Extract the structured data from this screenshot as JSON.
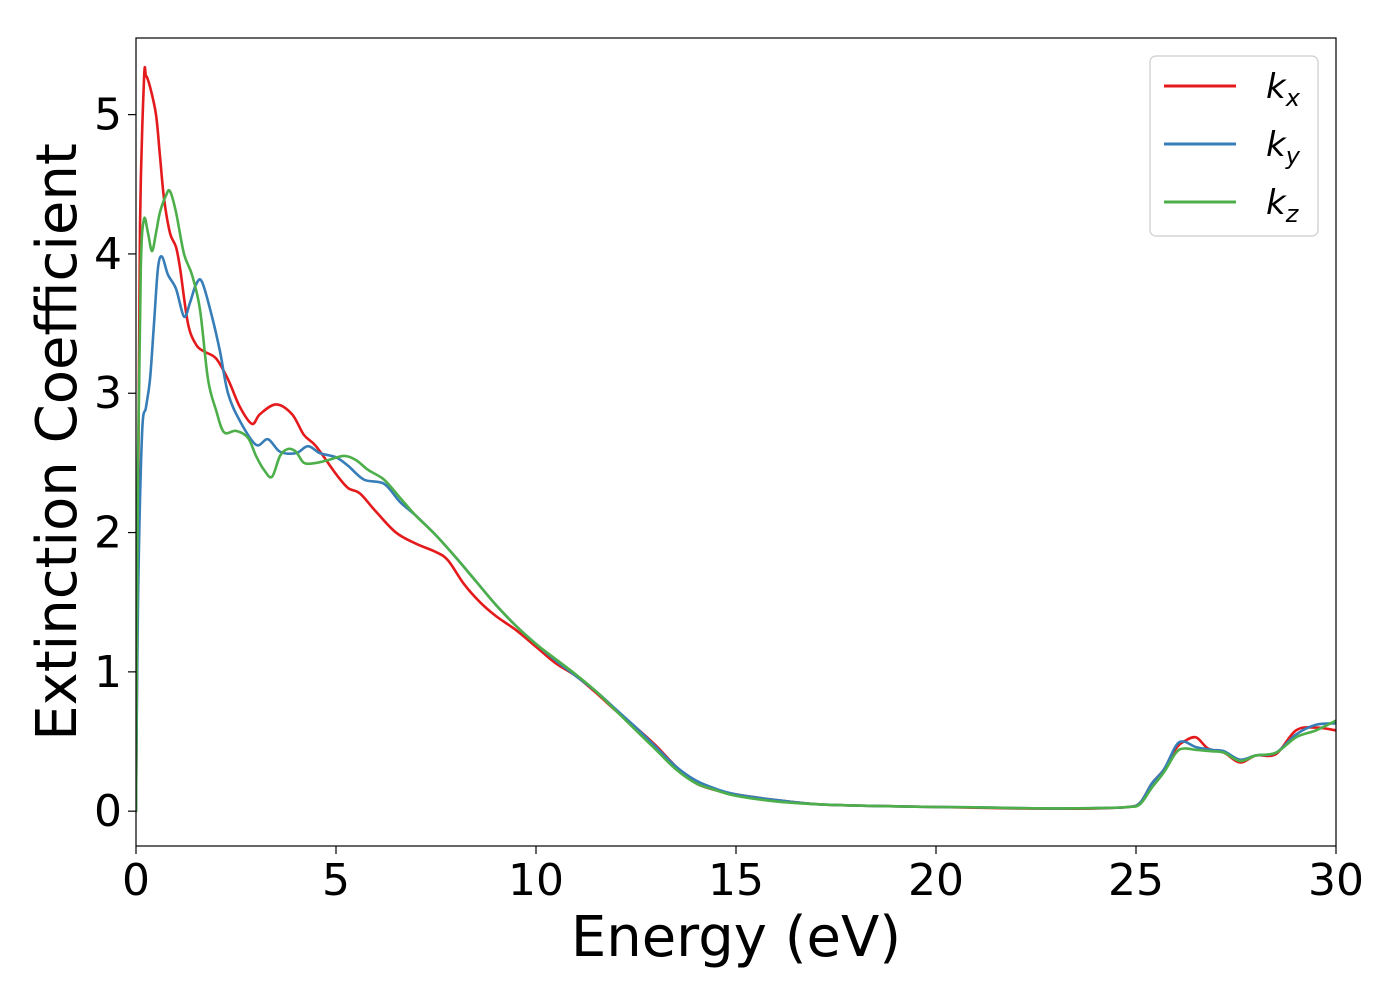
{
  "chart_data": {
    "type": "line",
    "title": "",
    "xlabel": "Energy (eV)",
    "ylabel": "Extinction Coefficient",
    "xlim": [
      0,
      30
    ],
    "ylim": [
      -0.25,
      5.55
    ],
    "xticks": [
      "0",
      "5",
      "10",
      "15",
      "20",
      "25",
      "30"
    ],
    "yticks": [
      "0",
      "1",
      "2",
      "3",
      "4",
      "5"
    ],
    "grid": false,
    "legend_position": "top-right",
    "series": [
      {
        "name": "k_x",
        "label_main": "k",
        "label_sub": "x",
        "color": "#e41a1c",
        "points": [
          [
            0,
            0
          ],
          [
            0.05,
            2.0
          ],
          [
            0.1,
            4.2
          ],
          [
            0.2,
            5.25
          ],
          [
            0.25,
            5.28
          ],
          [
            0.35,
            5.2
          ],
          [
            0.5,
            5.0
          ],
          [
            0.6,
            4.7
          ],
          [
            0.7,
            4.4
          ],
          [
            0.85,
            4.15
          ],
          [
            1.0,
            4.05
          ],
          [
            1.1,
            3.9
          ],
          [
            1.3,
            3.5
          ],
          [
            1.5,
            3.35
          ],
          [
            1.7,
            3.3
          ],
          [
            2.0,
            3.25
          ],
          [
            2.3,
            3.1
          ],
          [
            2.6,
            2.9
          ],
          [
            2.9,
            2.78
          ],
          [
            3.1,
            2.85
          ],
          [
            3.5,
            2.92
          ],
          [
            3.9,
            2.85
          ],
          [
            4.2,
            2.7
          ],
          [
            4.5,
            2.62
          ],
          [
            5.0,
            2.42
          ],
          [
            5.3,
            2.32
          ],
          [
            5.6,
            2.28
          ],
          [
            6.0,
            2.15
          ],
          [
            6.5,
            2.0
          ],
          [
            7.0,
            1.92
          ],
          [
            7.5,
            1.86
          ],
          [
            7.8,
            1.8
          ],
          [
            8.2,
            1.63
          ],
          [
            8.6,
            1.5
          ],
          [
            9.0,
            1.4
          ],
          [
            9.5,
            1.3
          ],
          [
            10.0,
            1.18
          ],
          [
            10.5,
            1.06
          ],
          [
            11.0,
            0.97
          ],
          [
            11.5,
            0.85
          ],
          [
            12.0,
            0.72
          ],
          [
            12.5,
            0.6
          ],
          [
            13.0,
            0.47
          ],
          [
            13.5,
            0.32
          ],
          [
            14.0,
            0.2
          ],
          [
            14.5,
            0.15
          ],
          [
            15.0,
            0.12
          ],
          [
            16.0,
            0.08
          ],
          [
            17.0,
            0.05
          ],
          [
            18.0,
            0.04
          ],
          [
            19.0,
            0.035
          ],
          [
            20.0,
            0.03
          ],
          [
            21.0,
            0.025
          ],
          [
            22.0,
            0.02
          ],
          [
            23.0,
            0.018
          ],
          [
            24.0,
            0.02
          ],
          [
            24.8,
            0.03
          ],
          [
            25.1,
            0.06
          ],
          [
            25.4,
            0.2
          ],
          [
            25.7,
            0.3
          ],
          [
            26.0,
            0.45
          ],
          [
            26.2,
            0.5
          ],
          [
            26.5,
            0.53
          ],
          [
            26.8,
            0.45
          ],
          [
            27.2,
            0.42
          ],
          [
            27.6,
            0.35
          ],
          [
            28.0,
            0.4
          ],
          [
            28.5,
            0.41
          ],
          [
            29.0,
            0.58
          ],
          [
            29.5,
            0.6
          ],
          [
            30.0,
            0.58
          ]
        ]
      },
      {
        "name": "k_y",
        "label_main": "k",
        "label_sub": "y",
        "color": "#377eb8",
        "points": [
          [
            0,
            0
          ],
          [
            0.05,
            1.5
          ],
          [
            0.15,
            2.7
          ],
          [
            0.25,
            2.9
          ],
          [
            0.35,
            3.1
          ],
          [
            0.45,
            3.5
          ],
          [
            0.55,
            3.9
          ],
          [
            0.65,
            3.98
          ],
          [
            0.8,
            3.85
          ],
          [
            1.0,
            3.75
          ],
          [
            1.2,
            3.55
          ],
          [
            1.35,
            3.65
          ],
          [
            1.5,
            3.78
          ],
          [
            1.65,
            3.8
          ],
          [
            1.9,
            3.55
          ],
          [
            2.1,
            3.3
          ],
          [
            2.3,
            3.0
          ],
          [
            2.6,
            2.8
          ],
          [
            3.0,
            2.63
          ],
          [
            3.3,
            2.67
          ],
          [
            3.6,
            2.58
          ],
          [
            4.0,
            2.57
          ],
          [
            4.3,
            2.62
          ],
          [
            4.6,
            2.57
          ],
          [
            5.0,
            2.54
          ],
          [
            5.3,
            2.48
          ],
          [
            5.7,
            2.38
          ],
          [
            6.2,
            2.35
          ],
          [
            6.6,
            2.22
          ],
          [
            7.0,
            2.12
          ],
          [
            7.5,
            1.98
          ],
          [
            8.0,
            1.82
          ],
          [
            8.5,
            1.65
          ],
          [
            9.0,
            1.48
          ],
          [
            9.5,
            1.33
          ],
          [
            10.0,
            1.2
          ],
          [
            10.5,
            1.08
          ],
          [
            11.0,
            0.97
          ],
          [
            11.5,
            0.86
          ],
          [
            12.0,
            0.73
          ],
          [
            12.5,
            0.6
          ],
          [
            13.0,
            0.46
          ],
          [
            13.5,
            0.32
          ],
          [
            14.0,
            0.22
          ],
          [
            14.5,
            0.16
          ],
          [
            15.0,
            0.12
          ],
          [
            16.0,
            0.08
          ],
          [
            17.0,
            0.05
          ],
          [
            18.0,
            0.04
          ],
          [
            19.0,
            0.035
          ],
          [
            20.0,
            0.03
          ],
          [
            21.0,
            0.028
          ],
          [
            22.0,
            0.022
          ],
          [
            23.0,
            0.02
          ],
          [
            24.0,
            0.022
          ],
          [
            24.8,
            0.03
          ],
          [
            25.1,
            0.06
          ],
          [
            25.4,
            0.2
          ],
          [
            25.7,
            0.3
          ],
          [
            26.0,
            0.47
          ],
          [
            26.2,
            0.5
          ],
          [
            26.5,
            0.46
          ],
          [
            26.9,
            0.44
          ],
          [
            27.2,
            0.43
          ],
          [
            27.6,
            0.37
          ],
          [
            28.0,
            0.4
          ],
          [
            28.5,
            0.42
          ],
          [
            29.0,
            0.55
          ],
          [
            29.5,
            0.62
          ],
          [
            30.0,
            0.63
          ]
        ]
      },
      {
        "name": "k_z",
        "label_main": "k",
        "label_sub": "z",
        "color": "#4daf4a",
        "points": [
          [
            0,
            0
          ],
          [
            0.05,
            2.5
          ],
          [
            0.12,
            3.9
          ],
          [
            0.2,
            4.25
          ],
          [
            0.3,
            4.15
          ],
          [
            0.4,
            4.02
          ],
          [
            0.5,
            4.15
          ],
          [
            0.6,
            4.3
          ],
          [
            0.75,
            4.42
          ],
          [
            0.85,
            4.45
          ],
          [
            1.0,
            4.3
          ],
          [
            1.2,
            4.0
          ],
          [
            1.4,
            3.85
          ],
          [
            1.6,
            3.6
          ],
          [
            1.8,
            3.1
          ],
          [
            2.0,
            2.88
          ],
          [
            2.2,
            2.72
          ],
          [
            2.5,
            2.73
          ],
          [
            2.8,
            2.68
          ],
          [
            3.0,
            2.55
          ],
          [
            3.2,
            2.45
          ],
          [
            3.4,
            2.4
          ],
          [
            3.6,
            2.55
          ],
          [
            3.8,
            2.6
          ],
          [
            4.0,
            2.58
          ],
          [
            4.2,
            2.5
          ],
          [
            4.5,
            2.5
          ],
          [
            4.8,
            2.52
          ],
          [
            5.2,
            2.55
          ],
          [
            5.5,
            2.52
          ],
          [
            5.8,
            2.45
          ],
          [
            6.2,
            2.38
          ],
          [
            6.6,
            2.25
          ],
          [
            7.0,
            2.12
          ],
          [
            7.5,
            1.98
          ],
          [
            8.0,
            1.82
          ],
          [
            8.5,
            1.65
          ],
          [
            9.0,
            1.48
          ],
          [
            9.5,
            1.33
          ],
          [
            10.0,
            1.2
          ],
          [
            10.5,
            1.09
          ],
          [
            11.0,
            0.98
          ],
          [
            11.5,
            0.86
          ],
          [
            12.0,
            0.72
          ],
          [
            12.5,
            0.58
          ],
          [
            13.0,
            0.44
          ],
          [
            13.5,
            0.3
          ],
          [
            14.0,
            0.2
          ],
          [
            14.5,
            0.15
          ],
          [
            15.0,
            0.11
          ],
          [
            16.0,
            0.07
          ],
          [
            17.0,
            0.05
          ],
          [
            18.0,
            0.04
          ],
          [
            19.0,
            0.035
          ],
          [
            20.0,
            0.03
          ],
          [
            21.0,
            0.028
          ],
          [
            22.0,
            0.022
          ],
          [
            23.0,
            0.02
          ],
          [
            24.0,
            0.022
          ],
          [
            24.8,
            0.03
          ],
          [
            25.1,
            0.05
          ],
          [
            25.4,
            0.17
          ],
          [
            25.7,
            0.28
          ],
          [
            26.0,
            0.42
          ],
          [
            26.2,
            0.45
          ],
          [
            26.5,
            0.44
          ],
          [
            26.9,
            0.43
          ],
          [
            27.2,
            0.42
          ],
          [
            27.6,
            0.36
          ],
          [
            28.0,
            0.4
          ],
          [
            28.5,
            0.42
          ],
          [
            29.0,
            0.53
          ],
          [
            29.5,
            0.58
          ],
          [
            30.0,
            0.65
          ]
        ]
      }
    ]
  }
}
